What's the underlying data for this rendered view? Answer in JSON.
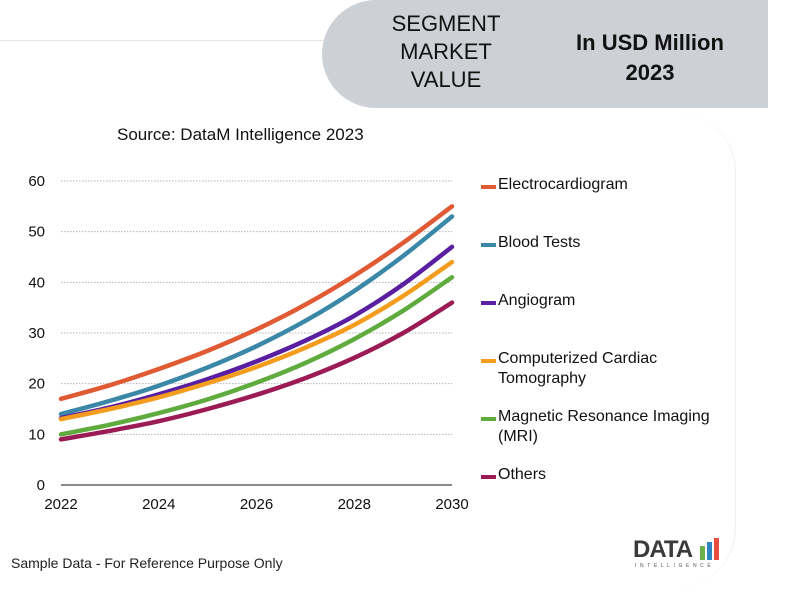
{
  "header": {
    "segment_label_lines": [
      "SEGMENT",
      "MARKET",
      "VALUE"
    ],
    "unit_label_lines": [
      "In USD Million",
      "2023"
    ],
    "banner_color": "#cdd0d4"
  },
  "source_text": "Source: DataM Intelligence 2023",
  "footer_note": "Sample Data - For Reference Purpose Only",
  "logo": {
    "text": "DATA",
    "subtext": "INTELLIGENCE",
    "bar_colors": [
      "#6ab04c",
      "#2e86c1",
      "#e74c3c"
    ]
  },
  "chart_data": {
    "type": "line",
    "title": "Source: DataM Intelligence 2023",
    "xlabel": "",
    "ylabel": "",
    "x": [
      2022,
      2023,
      2024,
      2025,
      2026,
      2027,
      2028,
      2029,
      2030
    ],
    "x_tick_labels": [
      "2022",
      "2024",
      "2026",
      "2028",
      "2030"
    ],
    "x_ticks": [
      2022,
      2024,
      2026,
      2028,
      2030
    ],
    "y_ticks": [
      0,
      10,
      20,
      30,
      40,
      50,
      60
    ],
    "y_tick_labels": [
      "0",
      "10",
      "20",
      "30",
      "40",
      "50",
      "60"
    ],
    "xlim": [
      2022,
      2030
    ],
    "ylim": [
      0,
      60
    ],
    "grid": "horizontal-dotted",
    "legend_position": "right",
    "series": [
      {
        "name": "Electrocardiogram",
        "color": "#e05a33",
        "values": [
          17.0,
          19.7,
          22.9,
          26.5,
          30.7,
          35.6,
          41.3,
          47.8,
          55.0
        ]
      },
      {
        "name": "Blood Tests",
        "color": "#3a87a8",
        "values": [
          14.0,
          16.6,
          19.6,
          23.2,
          27.4,
          32.4,
          38.3,
          45.2,
          53.0
        ]
      },
      {
        "name": "Angiogram",
        "color": "#5a1fa0",
        "values": [
          13.2,
          15.3,
          17.9,
          20.9,
          24.4,
          28.5,
          33.4,
          39.6,
          47.0
        ]
      },
      {
        "name": "Computerized Cardiac Tomography",
        "color": "#f39c1e",
        "values": [
          13.0,
          15.0,
          17.3,
          20.1,
          23.3,
          27.1,
          31.6,
          37.3,
          44.0
        ]
      },
      {
        "name": "Magnetic Resonance Imaging (MRI)",
        "color": "#5fab3e",
        "values": [
          10.0,
          11.9,
          14.2,
          16.9,
          20.2,
          24.1,
          28.8,
          34.4,
          41.0
        ]
      },
      {
        "name": "Others",
        "color": "#9b1b55",
        "values": [
          9.0,
          10.7,
          12.6,
          15.0,
          17.8,
          21.1,
          25.1,
          30.0,
          36.0
        ]
      }
    ],
    "legend_labels": [
      [
        "Electrocardiogram"
      ],
      [
        "Blood Tests"
      ],
      [
        "Angiogram"
      ],
      [
        "Computerized Cardiac",
        "Tomography"
      ],
      [
        "Magnetic Resonance Imaging",
        "(MRI)"
      ],
      [
        "Others"
      ]
    ]
  }
}
